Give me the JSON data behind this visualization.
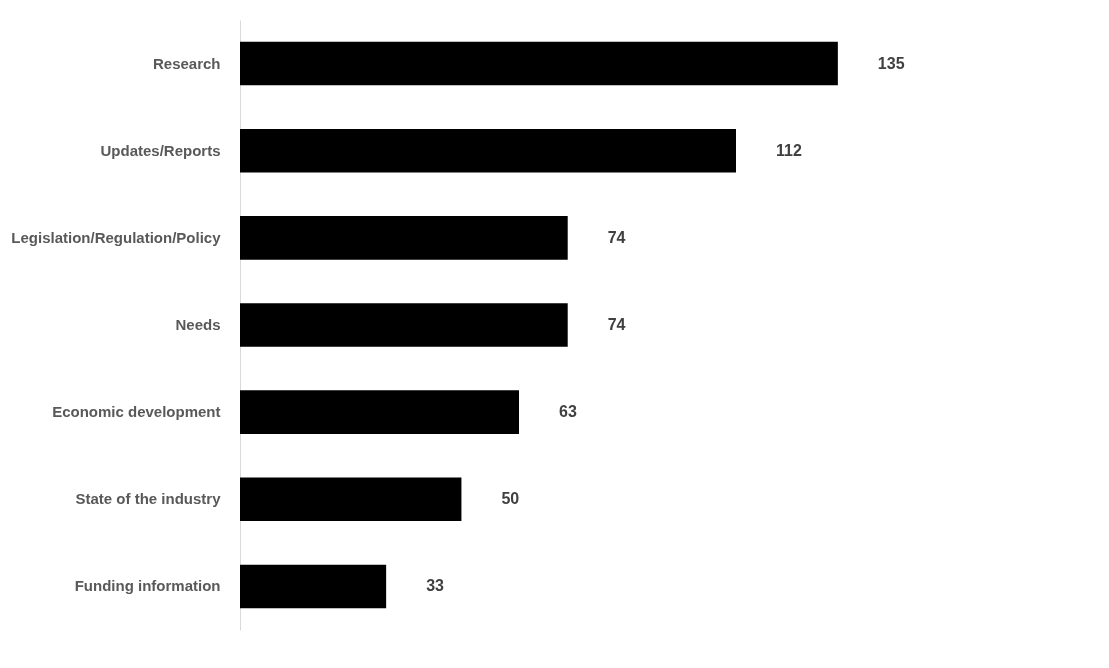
{
  "chart_data": {
    "type": "bar",
    "orientation": "horizontal",
    "categories": [
      "Research",
      "Updates/Reports",
      "Legislation/Regulation/Policy",
      "Needs",
      "Economic development",
      "State of the industry",
      "Funding information"
    ],
    "values": [
      135,
      112,
      74,
      74,
      63,
      50,
      33
    ],
    "color": "#000000",
    "data_labels": true
  }
}
